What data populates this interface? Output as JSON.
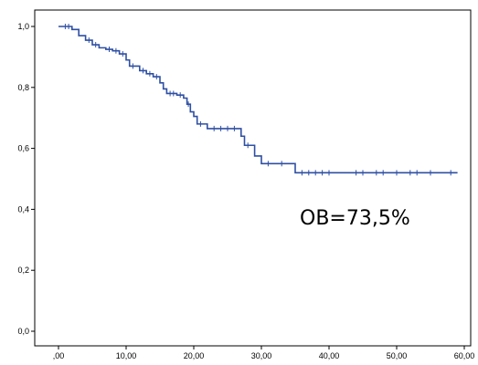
{
  "chart_data": {
    "type": "line",
    "title": "",
    "xlabel": "",
    "ylabel": "",
    "xlim": [
      0,
      60
    ],
    "ylim": [
      0,
      1
    ],
    "x_ticks": [
      ",00",
      "10,00",
      "20,00",
      "30,00",
      "40,00",
      "50,00",
      "60,00"
    ],
    "y_ticks": [
      "0,0",
      "0,2",
      "0,4",
      "0,6",
      "0,8",
      "1,0"
    ],
    "grid": false,
    "legend": "none",
    "line_color": "#2e4fa3",
    "annotation": "OB=73,5%",
    "series": [
      {
        "step": true,
        "points": [
          [
            0,
            1.0
          ],
          [
            2,
            0.99
          ],
          [
            3,
            0.97
          ],
          [
            4,
            0.955
          ],
          [
            5,
            0.94
          ],
          [
            6,
            0.93
          ],
          [
            7,
            0.925
          ],
          [
            8,
            0.92
          ],
          [
            9,
            0.91
          ],
          [
            10,
            0.89
          ],
          [
            10.5,
            0.87
          ],
          [
            12,
            0.855
          ],
          [
            13,
            0.845
          ],
          [
            14,
            0.835
          ],
          [
            15,
            0.815
          ],
          [
            15.5,
            0.795
          ],
          [
            16,
            0.78
          ],
          [
            17.5,
            0.775
          ],
          [
            18.5,
            0.765
          ],
          [
            19,
            0.745
          ],
          [
            19.5,
            0.72
          ],
          [
            20,
            0.705
          ],
          [
            20.5,
            0.68
          ],
          [
            22,
            0.665
          ],
          [
            27,
            0.64
          ],
          [
            27.5,
            0.61
          ],
          [
            29,
            0.575
          ],
          [
            30,
            0.55
          ],
          [
            35,
            0.52
          ],
          [
            59,
            0.52
          ]
        ],
        "censored_x": [
          1,
          1.5,
          4.5,
          5.5,
          7.5,
          8.5,
          9.5,
          11,
          12.5,
          13.5,
          14.5,
          16.5,
          17,
          18,
          19.2,
          21,
          23,
          24,
          25,
          26,
          28,
          31,
          33,
          36,
          37,
          38,
          39,
          40,
          44,
          45,
          47,
          48,
          50,
          52,
          53,
          55,
          58
        ]
      }
    ]
  }
}
